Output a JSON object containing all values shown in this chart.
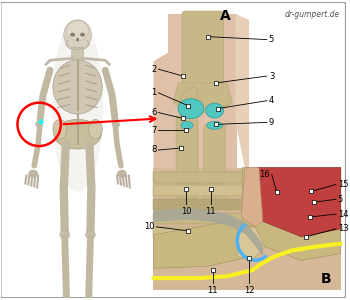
{
  "watermark": "dr-gumpert.de",
  "bg_color": "#ffffff",
  "border_color": "#999999",
  "label_A": "A",
  "label_B": "B",
  "fig_width": 3.5,
  "fig_height": 3.0,
  "dpi": 100,
  "skin_color_A": "#dfc0a8",
  "bone_color_A": "#c8b888",
  "teal_color": "#50c8c0",
  "teal_dark": "#30a0a0",
  "muscle_red": "#c04040",
  "muscle_pink": "#d88070",
  "nerve_yellow": "#f8f020",
  "nerve_blue": "#50b0f0",
  "skin_color_B": "#d4b898",
  "bone_color_B": "#c0b080",
  "gray_tendon": "#a8a898",
  "label_fontsize": 6.0,
  "letter_fontsize": 10,
  "anno_lw": 0.6,
  "marker_size": 2.5
}
